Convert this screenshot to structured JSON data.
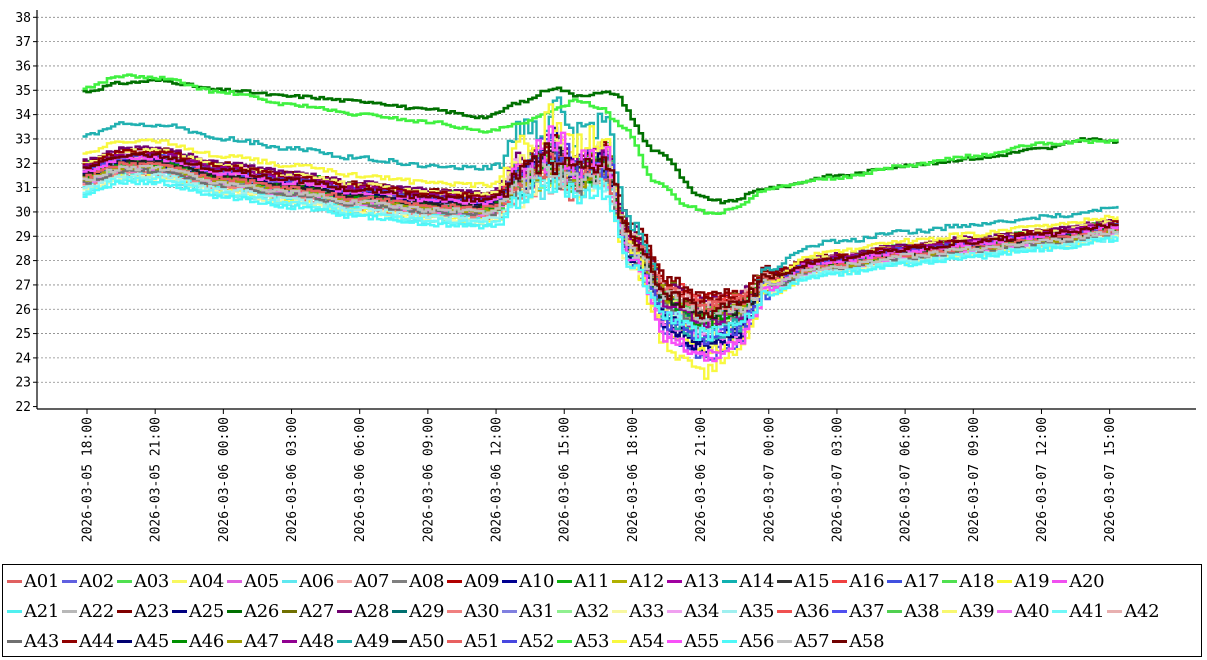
{
  "chart_data": {
    "type": "line",
    "title": "",
    "xlabel": "",
    "ylabel": "",
    "ylim": [
      22,
      38
    ],
    "yticks": [
      22,
      23,
      24,
      25,
      26,
      27,
      28,
      29,
      30,
      31,
      32,
      33,
      34,
      35,
      36,
      37,
      38
    ],
    "xlim_hours": [
      -2.2,
      48.8
    ],
    "xticks": [
      {
        "hour": 0,
        "label": "2026-03-05  18:00"
      },
      {
        "hour": 3,
        "label": "2026-03-05  21:00"
      },
      {
        "hour": 6,
        "label": "2026-03-06  00:00"
      },
      {
        "hour": 9,
        "label": "2026-03-06  03:00"
      },
      {
        "hour": 12,
        "label": "2026-03-06  06:00"
      },
      {
        "hour": 15,
        "label": "2026-03-06  09:00"
      },
      {
        "hour": 18,
        "label": "2026-03-06  12:00"
      },
      {
        "hour": 21,
        "label": "2026-03-06  15:00"
      },
      {
        "hour": 24,
        "label": "2026-03-06  18:00"
      },
      {
        "hour": 27,
        "label": "2026-03-06  21:00"
      },
      {
        "hour": 30,
        "label": "2026-03-07  00:00"
      },
      {
        "hour": 33,
        "label": "2026-03-07  03:00"
      },
      {
        "hour": 36,
        "label": "2026-03-07  06:00"
      },
      {
        "hour": 39,
        "label": "2026-03-07  09:00"
      },
      {
        "hour": 42,
        "label": "2026-03-07  12:00"
      },
      {
        "hour": 45,
        "label": "2026-03-07  15:00"
      }
    ],
    "grid": true,
    "series": [
      {
        "name": "A01",
        "color": "#e06060",
        "offset": -0.45,
        "dip": 0.9
      },
      {
        "name": "A02",
        "color": "#6060e0",
        "offset": -0.2,
        "dip": 1.3
      },
      {
        "name": "A03",
        "color": "#50e050",
        "offset": 0.25,
        "dip": 0.8
      },
      {
        "name": "A04",
        "color": "#f8f860",
        "offset": 0.4,
        "dip": 1.6
      },
      {
        "name": "A05",
        "color": "#e060e0",
        "offset": 0.1,
        "dip": 1.2
      },
      {
        "name": "A06",
        "color": "#60e8f0",
        "offset": -0.7,
        "dip": 0.6
      },
      {
        "name": "A07",
        "color": "#f4a8a8",
        "offset": 0.05,
        "dip": 0.7
      },
      {
        "name": "A08",
        "color": "#808080",
        "offset": -0.1,
        "dip": 0.9
      },
      {
        "name": "A09",
        "color": "#b00000",
        "offset": 0.3,
        "dip": 0.5
      },
      {
        "name": "A10",
        "color": "#000090",
        "offset": 0.15,
        "dip": 1.7
      },
      {
        "name": "A11",
        "color": "#10b010",
        "offset": 0.5,
        "dip": 0.9
      },
      {
        "name": "A12",
        "color": "#b0b000",
        "offset": -0.3,
        "dip": 0.7
      },
      {
        "name": "A13",
        "color": "#a000a0",
        "offset": 0.45,
        "dip": 1.4
      },
      {
        "name": "A14",
        "color": "#10b0b0",
        "offset": -0.25,
        "dip": 1.1
      },
      {
        "name": "A15",
        "color": "#303030",
        "offset": 0.2,
        "dip": 0.8
      },
      {
        "name": "A16",
        "color": "#f04040",
        "offset": 0.0,
        "dip": 0.4
      },
      {
        "name": "A17",
        "color": "#4050e0",
        "offset": -0.15,
        "dip": 1.8
      },
      {
        "name": "A18",
        "color": "#50e050",
        "offset": 0.35,
        "dip": 1.0
      },
      {
        "name": "A19",
        "color": "#f8f830",
        "offset": -0.55,
        "dip": 1.5
      },
      {
        "name": "A20",
        "color": "#f050f0",
        "offset": 0.25,
        "dip": 1.9
      },
      {
        "name": "A21",
        "color": "#50f0f0",
        "offset": -0.4,
        "dip": 1.0
      },
      {
        "name": "A22",
        "color": "#b8b8b8",
        "offset": 0.1,
        "dip": 0.6
      },
      {
        "name": "A23",
        "color": "#800000",
        "offset": 0.55,
        "dip": 0.5
      },
      {
        "name": "A25",
        "color": "#000080",
        "offset": -0.05,
        "dip": 1.6
      },
      {
        "name": "A26",
        "color": "#007000",
        "offset": 0.0,
        "dip": 0.0
      },
      {
        "name": "A27",
        "color": "#707000",
        "offset": 0.3,
        "dip": 0.6
      },
      {
        "name": "A28",
        "color": "#700070",
        "offset": 0.6,
        "dip": 0.7
      },
      {
        "name": "A29",
        "color": "#007070",
        "offset": 0.2,
        "dip": 0.9
      },
      {
        "name": "A30",
        "color": "#f08080",
        "offset": -0.35,
        "dip": 0.8
      },
      {
        "name": "A31",
        "color": "#8080e0",
        "offset": 0.05,
        "dip": 1.1
      },
      {
        "name": "A32",
        "color": "#90f090",
        "offset": -0.2,
        "dip": 0.7
      },
      {
        "name": "A33",
        "color": "#f8f8a0",
        "offset": -0.6,
        "dip": 1.2
      },
      {
        "name": "A34",
        "color": "#f0a0f0",
        "offset": 0.4,
        "dip": 1.3
      },
      {
        "name": "A35",
        "color": "#a0f0f0",
        "offset": -0.5,
        "dip": 0.9
      },
      {
        "name": "A36",
        "color": "#f05050",
        "offset": 0.15,
        "dip": 0.5
      },
      {
        "name": "A37",
        "color": "#5050f0",
        "offset": 0.3,
        "dip": 1.5
      },
      {
        "name": "A38",
        "color": "#50d050",
        "offset": -0.1,
        "dip": 0.8
      },
      {
        "name": "A39",
        "color": "#f8f870",
        "offset": 0.5,
        "dip": 1.2
      },
      {
        "name": "A40",
        "color": "#f070f0",
        "offset": -0.25,
        "dip": 1.4
      },
      {
        "name": "A41",
        "color": "#70f8f8",
        "offset": -0.65,
        "dip": 0.8
      },
      {
        "name": "A42",
        "color": "#e8b0b0",
        "offset": 0.2,
        "dip": 0.6
      },
      {
        "name": "A43",
        "color": "#707070",
        "offset": -0.3,
        "dip": 0.9
      },
      {
        "name": "A44",
        "color": "#900000",
        "offset": 0.45,
        "dip": 0.6
      },
      {
        "name": "A45",
        "color": "#000070",
        "offset": 0.1,
        "dip": 1.5
      },
      {
        "name": "A46",
        "color": "#009000",
        "offset": 0.0,
        "dip": 1.0
      },
      {
        "name": "A47",
        "color": "#a0a000",
        "offset": -0.15,
        "dip": 0.7
      },
      {
        "name": "A48",
        "color": "#900090",
        "offset": 0.35,
        "dip": 1.1
      },
      {
        "name": "A49",
        "color": "#20b0b0",
        "offset": 1.6,
        "dip": 2.0
      },
      {
        "name": "A50",
        "color": "#202020",
        "offset": 0.05,
        "dip": 0.8
      },
      {
        "name": "A51",
        "color": "#e86060",
        "offset": -0.05,
        "dip": 0.6
      },
      {
        "name": "A52",
        "color": "#4848e0",
        "offset": 0.25,
        "dip": 1.6
      },
      {
        "name": "A53",
        "color": "#40f040",
        "offset": 0.0,
        "dip": 0.0
      },
      {
        "name": "A54",
        "color": "#f8f840",
        "offset": 0.9,
        "dip": 2.6
      },
      {
        "name": "A55",
        "color": "#f850f8",
        "offset": 0.2,
        "dip": 2.0
      },
      {
        "name": "A56",
        "color": "#50f8f8",
        "offset": -0.8,
        "dip": 1.0
      },
      {
        "name": "A57",
        "color": "#c0c0c0",
        "offset": -0.2,
        "dip": 0.7
      },
      {
        "name": "A58",
        "color": "#700000",
        "offset": 0.3,
        "dip": 0.8
      }
    ],
    "special_series": {
      "A26": [
        [
          -0.2,
          34.95
        ],
        [
          1.5,
          35.3
        ],
        [
          3,
          35.4
        ],
        [
          6,
          35.0
        ],
        [
          9,
          34.75
        ],
        [
          12,
          34.55
        ],
        [
          15,
          34.2
        ],
        [
          17.5,
          33.9
        ],
        [
          19,
          34.5
        ],
        [
          20.5,
          35.1
        ],
        [
          21.5,
          34.8
        ],
        [
          23,
          34.9
        ],
        [
          25,
          32.5
        ],
        [
          27,
          30.6
        ],
        [
          28,
          30.4
        ],
        [
          30,
          31.0
        ],
        [
          33,
          31.5
        ],
        [
          36,
          31.9
        ],
        [
          39,
          32.2
        ],
        [
          42,
          32.6
        ],
        [
          44,
          33.0
        ],
        [
          45.3,
          32.85
        ]
      ],
      "A53": [
        [
          -0.2,
          35.1
        ],
        [
          1.5,
          35.6
        ],
        [
          3,
          35.5
        ],
        [
          6,
          34.9
        ],
        [
          9,
          34.4
        ],
        [
          12,
          34.0
        ],
        [
          15,
          33.7
        ],
        [
          17.5,
          33.3
        ],
        [
          19,
          33.6
        ],
        [
          20.5,
          34.2
        ],
        [
          21.5,
          34.6
        ],
        [
          22.5,
          34.3
        ],
        [
          23.5,
          33.5
        ],
        [
          25,
          31.2
        ],
        [
          26.5,
          30.2
        ],
        [
          27.5,
          29.9
        ],
        [
          28.5,
          30.2
        ],
        [
          30,
          31.0
        ],
        [
          33,
          31.4
        ],
        [
          36,
          31.9
        ],
        [
          39,
          32.3
        ],
        [
          42,
          32.8
        ],
        [
          44,
          32.9
        ],
        [
          45.3,
          32.9
        ]
      ]
    }
  }
}
